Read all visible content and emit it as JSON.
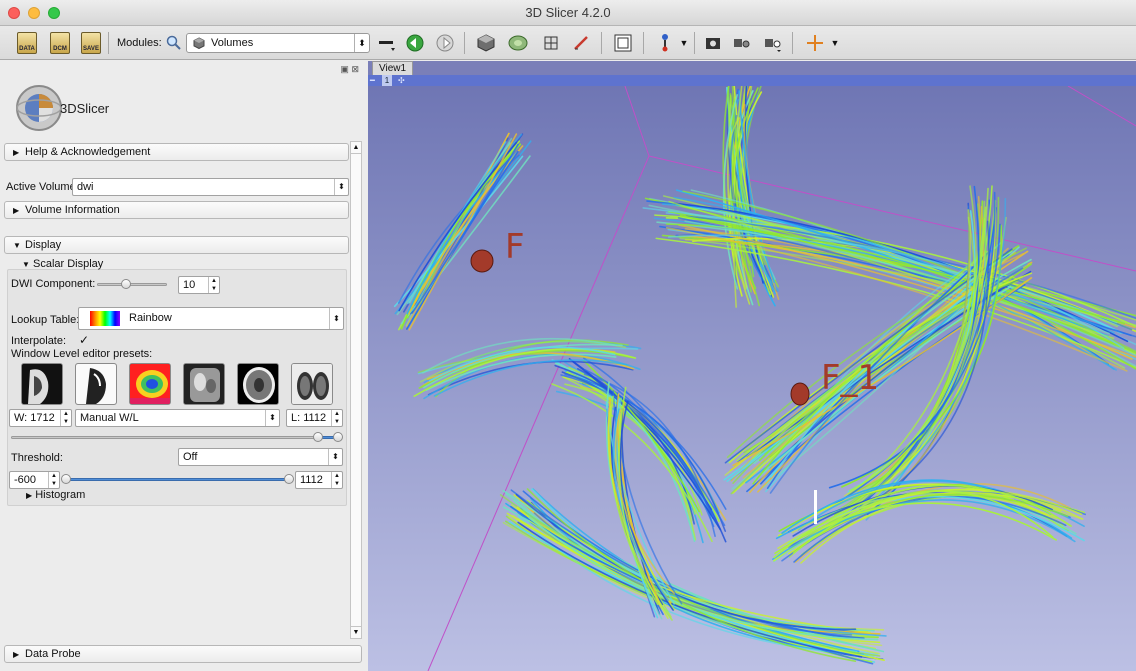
{
  "window": {
    "title": "3D Slicer 4.2.0"
  },
  "toolbar": {
    "data_label": "DATA",
    "dcm_label": "DCM",
    "save_label": "SAVE",
    "modules_label": "Modules:",
    "module_selected": "Volumes"
  },
  "logo": {
    "text": "3DSlicer"
  },
  "sections": {
    "help": "Help & Acknowledgement",
    "volume_info": "Volume Information",
    "display": "Display",
    "scalar_display": "Scalar Display",
    "histogram": "Histogram",
    "data_probe": "Data Probe"
  },
  "active_volume": {
    "label": "Active Volume",
    "value": "dwi"
  },
  "dwi_component": {
    "label": "DWI Component:",
    "value": "10",
    "level": 0.5
  },
  "lookup_table": {
    "label": "Lookup Table:",
    "value": "Rainbow"
  },
  "interpolate": {
    "label": "Interpolate:",
    "checked": true,
    "mark": "✓"
  },
  "window_level": {
    "presets_label": "Window Level editor presets:",
    "presets": [
      "ct-air-icon",
      "ct-bone-icon",
      "pet-rainbow-icon",
      "ct-abdomen-icon",
      "ct-brain-icon",
      "ct-lung-icon"
    ],
    "window": "W: 1712",
    "mode": "Manual W/L",
    "level": "L: 1112"
  },
  "threshold": {
    "label": "Threshold:",
    "mode": "Off",
    "min": "-600",
    "max": "1112"
  },
  "view": {
    "tab": "View1",
    "number": "1"
  },
  "fiducials": [
    {
      "label": "F"
    },
    {
      "label": "F_1"
    }
  ],
  "colors": {
    "viewer_bg_top": "#7278b4",
    "viewer_bg_bottom": "#b9bde2",
    "fiducial": "#a33a2a"
  }
}
